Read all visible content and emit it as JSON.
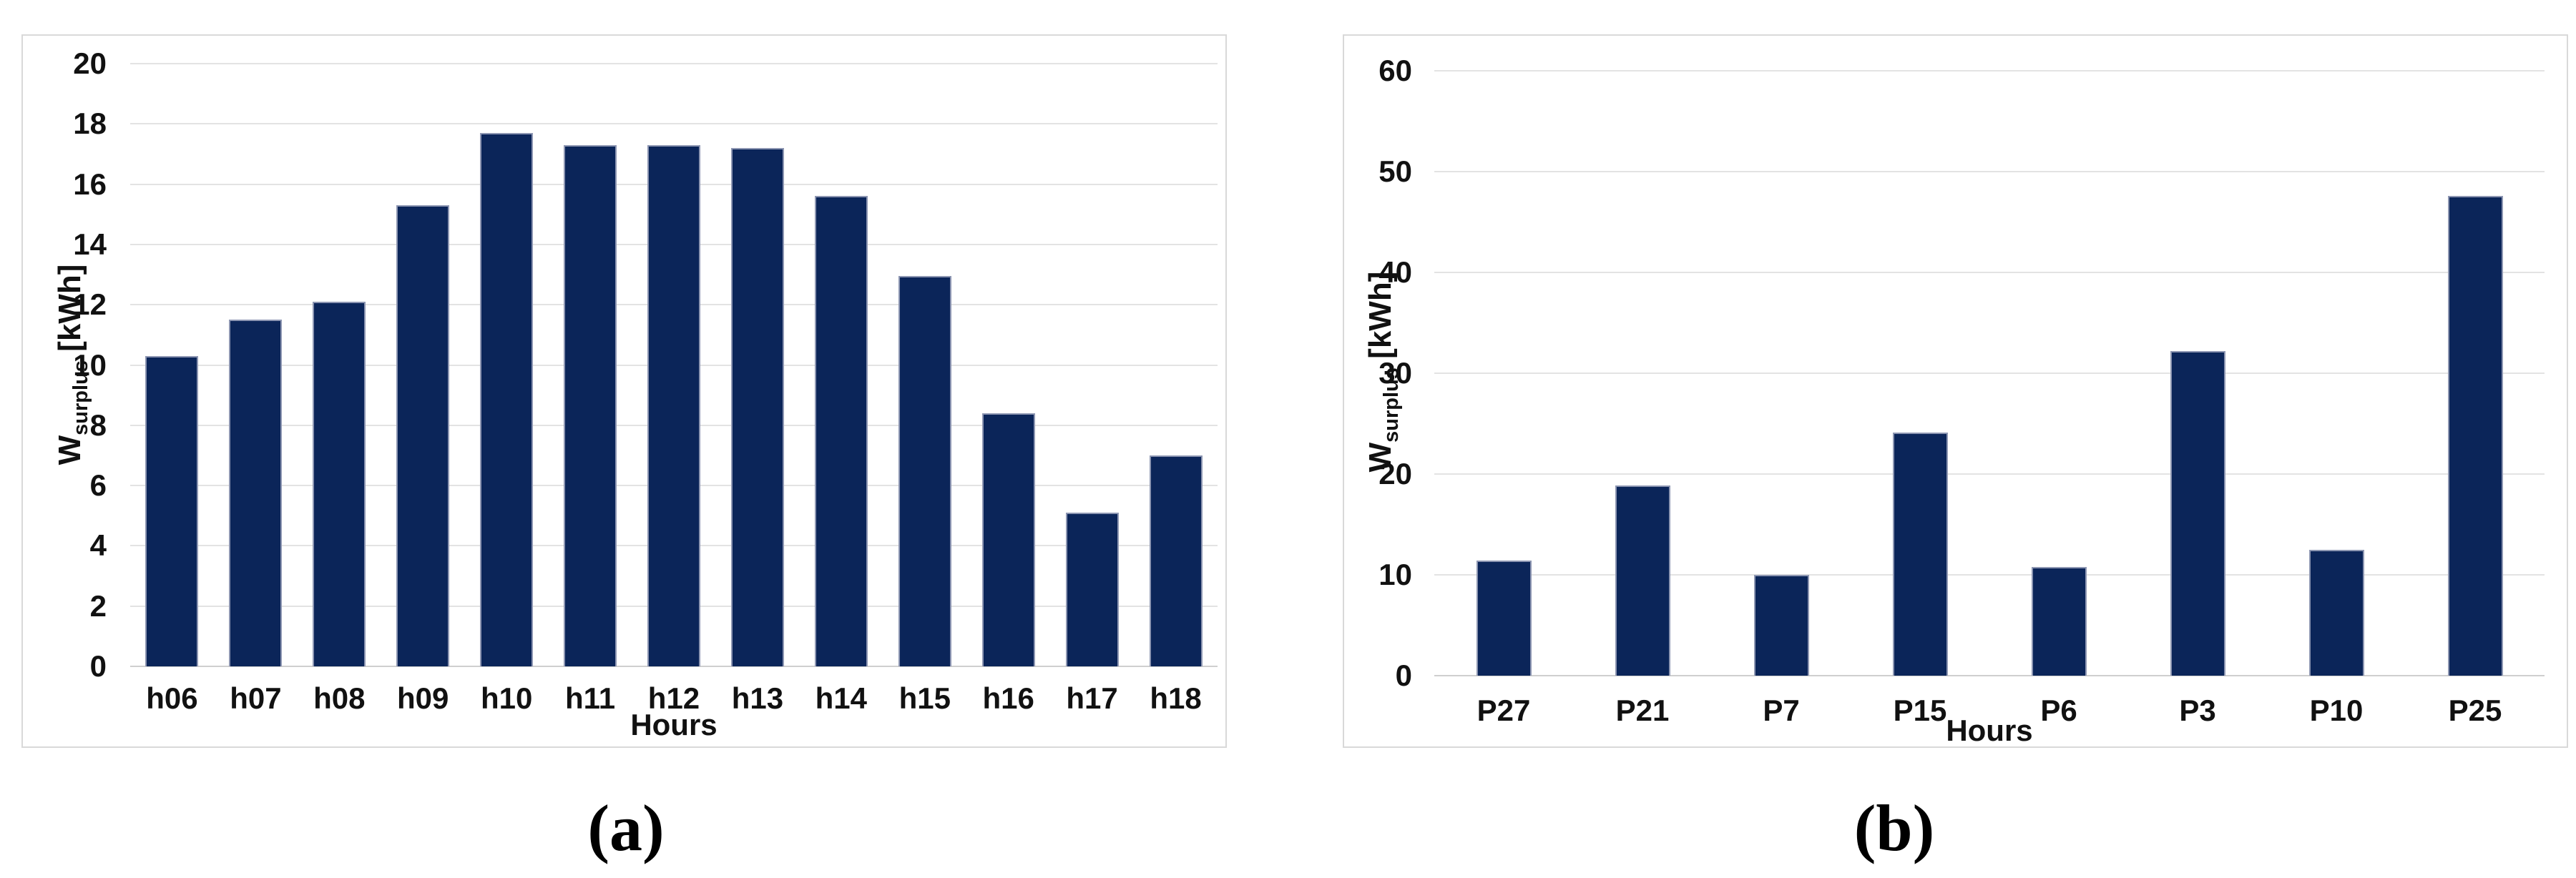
{
  "figure": {
    "captions": {
      "a": "(a)",
      "b": "(b)"
    }
  },
  "axes": {
    "y_symbol": "W",
    "y_subscript": "surplus",
    "y_unit": "[kWh]",
    "x_title": "Hours"
  },
  "colors": {
    "bar_fill": "#0b2559",
    "bar_edge": "#8d96b2",
    "gridline": "#e3e3e3",
    "baseline": "#cfcfcf",
    "panel_border": "#d9d9d9",
    "text": "#111111"
  },
  "chart_data": [
    {
      "id": "a",
      "type": "bar",
      "title": "",
      "xlabel": "Hours",
      "ylabel": "W_surplus [kWh]",
      "ylim": [
        0,
        20
      ],
      "ytick_step": 2,
      "grid": true,
      "legend": "none",
      "categories": [
        "h06",
        "h07",
        "h08",
        "h09",
        "h10",
        "h11",
        "h12",
        "h13",
        "h14",
        "h15",
        "h16",
        "h17",
        "h18"
      ],
      "values": [
        10.3,
        11.5,
        12.1,
        15.3,
        17.7,
        17.3,
        17.3,
        17.2,
        15.6,
        12.95,
        8.4,
        5.1,
        7.0
      ]
    },
    {
      "id": "b",
      "type": "bar",
      "title": "",
      "xlabel": "Hours",
      "ylabel": "W_surplus [kWh]",
      "ylim": [
        0,
        60
      ],
      "ytick_step": 10,
      "grid": true,
      "legend": "none",
      "categories": [
        "P27",
        "P21",
        "P7",
        "P15",
        "P6",
        "P3",
        "P10",
        "P25"
      ],
      "values": [
        11.4,
        18.9,
        10.0,
        24.1,
        10.8,
        32.2,
        12.5,
        47.6
      ]
    }
  ]
}
